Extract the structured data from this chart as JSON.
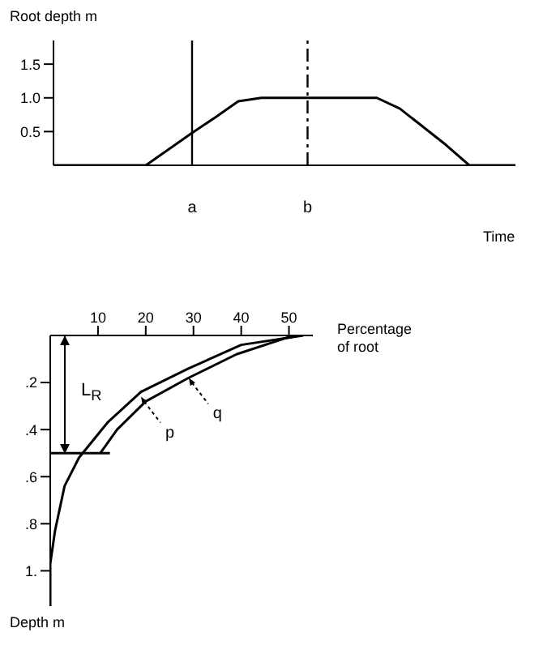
{
  "chart_data": [
    {
      "type": "line",
      "ylabel": "Root depth m",
      "xlabel": "Time",
      "categories": [
        null,
        null,
        null,
        null,
        null,
        null,
        "a",
        null,
        null,
        null,
        null,
        "b",
        null,
        null,
        null,
        null,
        null,
        null,
        null,
        null,
        null
      ],
      "values": [
        0,
        0,
        0,
        0,
        0,
        0.24,
        0.48,
        0.71,
        0.95,
        1,
        1,
        1,
        1,
        1,
        1,
        0.84,
        0.57,
        0.3,
        0,
        0,
        0
      ],
      "color": "#000000",
      "ylim": [
        0,
        1.85
      ],
      "yticks": [
        0.5,
        {
          "value": 1,
          "label": "1.0"
        },
        1.5
      ],
      "ref_lines": [
        {
          "axis": "x",
          "value": "a",
          "line_style": "solid"
        },
        {
          "axis": "x",
          "value": "b",
          "line_style": "dashed"
        }
      ]
    },
    {
      "type": "line",
      "xlabel": "Percentage of root",
      "ylabel": "Depth m",
      "xlim": [
        0,
        55
      ],
      "xticks": [
        10,
        20,
        30,
        40,
        50
      ],
      "ylim": [
        1.15,
        0
      ],
      "yticks": [
        {
          "value": 0.2,
          "label": ".2"
        },
        {
          "value": 0.4,
          "label": ".4"
        },
        {
          "value": 0.6,
          "label": ".6"
        },
        {
          "value": 0.8,
          "label": ".8"
        },
        {
          "value": 1,
          "label": "1."
        }
      ],
      "series": [
        {
          "color": "#000000",
          "x": [
            53,
            40,
            29,
            19,
            12,
            6,
            3,
            1,
            0,
            0
          ],
          "values": [
            0,
            0.04,
            0.14,
            0.24,
            0.37,
            0.52,
            0.64,
            0.83,
            0.97,
            1.15
          ]
        },
        {
          "color": "#000000",
          "x": [
            52,
            49.5,
            39,
            29,
            20,
            14,
            10.5
          ],
          "values": [
            0,
            0.01,
            0.08,
            0.18,
            0.28,
            0.4,
            0.5
          ]
        },
        {
          "color": "#000000",
          "x": [
            0,
            12.5
          ],
          "values": [
            0.5,
            0.5
          ]
        }
      ],
      "annotations": [
        "L$_{R}$",
        {
          "text": "p",
          "x": 19,
          "y": 0.26
        },
        {
          "text": "q",
          "x": 29,
          "y": 0.18
        }
      ]
    }
  ]
}
